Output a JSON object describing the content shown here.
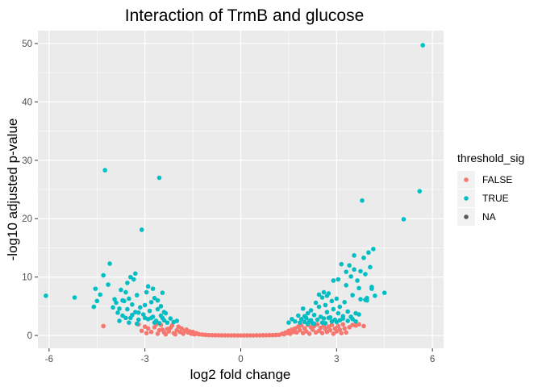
{
  "chart_data": {
    "type": "scatter",
    "title": "Interaction of TrmB and glucose",
    "xlabel": "log2 fold change",
    "ylabel": "-log10 adjusted p-value",
    "xlim": [
      -6.35,
      6.35
    ],
    "ylim": [
      -2.2,
      52.2
    ],
    "x_ticks": [
      -6,
      -3,
      0,
      3,
      6
    ],
    "x_tick_labels": [
      "-6",
      "-3",
      "0",
      "3",
      "6"
    ],
    "y_ticks": [
      0,
      10,
      20,
      30,
      40,
      50
    ],
    "y_tick_labels": [
      "0",
      "10",
      "20",
      "30",
      "40",
      "50"
    ],
    "grid": true,
    "panel_background": "#ebebeb",
    "legend": {
      "title": "threshold_sig",
      "placement": "right",
      "entries": [
        {
          "label": "FALSE",
          "color": "#F8766D"
        },
        {
          "label": "TRUE",
          "color": "#00BFC4"
        },
        {
          "label": "NA",
          "color": "#595959"
        }
      ]
    },
    "series": [
      {
        "name": "FALSE",
        "color": "#F8766D",
        "points": [
          [
            -4.3,
            1.6
          ],
          [
            3.85,
            1.6
          ],
          [
            -2.4,
            0.5
          ],
          [
            -2.3,
            1.1
          ],
          [
            -2.2,
            1.3
          ],
          [
            -2.1,
            0.4
          ],
          [
            -2.0,
            0.9
          ],
          [
            -1.95,
            1.5
          ],
          [
            -1.9,
            0.6
          ],
          [
            -1.85,
            1.2
          ],
          [
            -1.8,
            0.3
          ],
          [
            -1.75,
            0.8
          ],
          [
            -1.7,
            1.0
          ],
          [
            -1.65,
            0.5
          ],
          [
            -1.6,
            0.7
          ],
          [
            -1.55,
            0.3
          ],
          [
            -1.5,
            0.6
          ],
          [
            -1.45,
            0.2
          ],
          [
            -1.4,
            0.4
          ],
          [
            -1.35,
            0.3
          ],
          [
            -1.3,
            0.2
          ],
          [
            -1.2,
            0.15
          ],
          [
            -1.1,
            0.1
          ],
          [
            -2.8,
            0.6
          ],
          [
            -2.7,
            1.4
          ],
          [
            -2.6,
            0.3
          ],
          [
            -2.5,
            1.8
          ],
          [
            -2.45,
            1.0
          ],
          [
            -2.35,
            0.2
          ],
          [
            -2.25,
            0.7
          ],
          [
            -2.15,
            1.7
          ],
          [
            -2.05,
            0.2
          ],
          [
            -2.9,
            1.2
          ],
          [
            -3.0,
            1.5
          ],
          [
            -3.2,
            1.9
          ],
          [
            -2.95,
            0.4
          ],
          [
            -2.55,
            0.9
          ],
          [
            -3.1,
            0.8
          ],
          [
            -2.65,
            1.9
          ],
          [
            -1.0,
            0.05
          ],
          [
            -0.9,
            0.05
          ],
          [
            -0.8,
            0.03
          ],
          [
            -0.7,
            0.03
          ],
          [
            -0.6,
            0.02
          ],
          [
            -0.5,
            0.02
          ],
          [
            -0.4,
            0.01
          ],
          [
            -0.3,
            0.01
          ],
          [
            -0.2,
            0.01
          ],
          [
            -0.1,
            0.0
          ],
          [
            0.0,
            0.0
          ],
          [
            0.1,
            0.0
          ],
          [
            0.2,
            0.01
          ],
          [
            0.3,
            0.01
          ],
          [
            0.4,
            0.01
          ],
          [
            0.5,
            0.02
          ],
          [
            0.6,
            0.02
          ],
          [
            0.7,
            0.03
          ],
          [
            0.8,
            0.03
          ],
          [
            0.9,
            0.05
          ],
          [
            1.0,
            0.05
          ],
          [
            1.1,
            0.08
          ],
          [
            1.2,
            0.1
          ],
          [
            1.3,
            0.3
          ],
          [
            1.35,
            0.2
          ],
          [
            1.4,
            0.5
          ],
          [
            1.45,
            0.4
          ],
          [
            1.5,
            0.8
          ],
          [
            1.55,
            0.3
          ],
          [
            1.6,
            1.0
          ],
          [
            1.65,
            0.6
          ],
          [
            1.7,
            1.2
          ],
          [
            1.75,
            0.5
          ],
          [
            1.8,
            1.5
          ],
          [
            1.85,
            0.9
          ],
          [
            1.9,
            1.7
          ],
          [
            1.95,
            0.4
          ],
          [
            2.0,
            1.2
          ],
          [
            2.05,
            0.7
          ],
          [
            2.1,
            1.8
          ],
          [
            2.15,
            0.3
          ],
          [
            2.2,
            1.4
          ],
          [
            2.25,
            1.0
          ],
          [
            2.3,
            1.6
          ],
          [
            2.35,
            0.5
          ],
          [
            2.4,
            1.9
          ],
          [
            2.45,
            0.8
          ],
          [
            2.5,
            1.3
          ],
          [
            2.55,
            0.4
          ],
          [
            2.6,
            1.7
          ],
          [
            2.65,
            1.1
          ],
          [
            2.7,
            0.6
          ],
          [
            2.75,
            1.5
          ],
          [
            2.8,
            0.9
          ],
          [
            2.85,
            1.8
          ],
          [
            2.9,
            0.3
          ],
          [
            2.95,
            1.2
          ],
          [
            3.0,
            0.7
          ],
          [
            3.05,
            1.6
          ],
          [
            3.1,
            1.0
          ],
          [
            3.2,
            1.9
          ],
          [
            3.3,
            0.5
          ],
          [
            3.4,
            1.4
          ],
          [
            3.5,
            1.8
          ],
          [
            3.6,
            1.7
          ],
          [
            3.7,
            1.9
          ],
          [
            3.15,
            0.4
          ],
          [
            3.25,
            1.2
          ]
        ]
      },
      {
        "name": "TRUE",
        "color": "#00BFC4",
        "points": [
          [
            -6.1,
            6.8
          ],
          [
            -5.2,
            6.5
          ],
          [
            -4.6,
            4.9
          ],
          [
            -4.5,
            5.9
          ],
          [
            -4.55,
            8.0
          ],
          [
            -4.4,
            7.0
          ],
          [
            -4.3,
            10.3
          ],
          [
            -4.25,
            28.3
          ],
          [
            -4.1,
            12.3
          ],
          [
            -4.15,
            8.7
          ],
          [
            -4.0,
            4.8
          ],
          [
            -3.9,
            5.6
          ],
          [
            -3.85,
            3.9
          ],
          [
            -3.8,
            4.6
          ],
          [
            -3.75,
            7.8
          ],
          [
            -3.7,
            3.4
          ],
          [
            -3.65,
            5.9
          ],
          [
            -3.6,
            7.4
          ],
          [
            -3.55,
            4.5
          ],
          [
            -3.5,
            6.3
          ],
          [
            -3.45,
            3.0
          ],
          [
            -3.4,
            5.3
          ],
          [
            -3.35,
            9.6
          ],
          [
            -3.3,
            4.0
          ],
          [
            -3.25,
            6.9
          ],
          [
            -3.2,
            2.7
          ],
          [
            -3.15,
            4.8
          ],
          [
            -3.1,
            18.1
          ],
          [
            -3.05,
            3.6
          ],
          [
            -3.0,
            5.2
          ],
          [
            -2.95,
            7.4
          ],
          [
            -2.9,
            2.8
          ],
          [
            -2.85,
            4.2
          ],
          [
            -2.8,
            5.7
          ],
          [
            -2.75,
            3.2
          ],
          [
            -2.7,
            6.4
          ],
          [
            -2.65,
            2.5
          ],
          [
            -2.6,
            4.5
          ],
          [
            -2.55,
            27.0
          ],
          [
            -2.5,
            3.4
          ],
          [
            -2.45,
            7.3
          ],
          [
            -2.4,
            2.6
          ],
          [
            -2.35,
            3.8
          ],
          [
            -2.3,
            2.2
          ],
          [
            -2.2,
            2.9
          ],
          [
            -2.1,
            2.3
          ],
          [
            -2.0,
            2.5
          ],
          [
            -3.3,
            10.6
          ],
          [
            -3.45,
            10.0
          ],
          [
            -3.55,
            9.0
          ],
          [
            -3.7,
            6.0
          ],
          [
            -3.95,
            6.2
          ],
          [
            -2.6,
            6.0
          ],
          [
            -2.75,
            8.0
          ],
          [
            -2.9,
            8.4
          ],
          [
            -3.0,
            3.0
          ],
          [
            -3.2,
            3.9
          ],
          [
            -3.4,
            3.5
          ],
          [
            -2.5,
            5.0
          ],
          [
            -2.45,
            3.0
          ],
          [
            -2.4,
            4.0
          ],
          [
            -2.55,
            2.1
          ],
          [
            -2.7,
            2.2
          ],
          [
            -2.8,
            3.0
          ],
          [
            -3.6,
            3.0
          ],
          [
            -3.8,
            2.5
          ],
          [
            -3.5,
            2.2
          ],
          [
            -3.25,
            2.0
          ],
          [
            1.5,
            2.2
          ],
          [
            1.6,
            2.8
          ],
          [
            1.7,
            2.4
          ],
          [
            1.8,
            3.4
          ],
          [
            1.85,
            2.2
          ],
          [
            1.9,
            2.8
          ],
          [
            1.95,
            4.6
          ],
          [
            2.0,
            2.3
          ],
          [
            2.05,
            3.0
          ],
          [
            2.1,
            3.8
          ],
          [
            2.15,
            2.5
          ],
          [
            2.2,
            4.3
          ],
          [
            2.25,
            2.1
          ],
          [
            2.3,
            3.5
          ],
          [
            2.35,
            5.6
          ],
          [
            2.4,
            2.7
          ],
          [
            2.45,
            4.9
          ],
          [
            2.5,
            3.2
          ],
          [
            2.55,
            6.5
          ],
          [
            2.6,
            2.9
          ],
          [
            2.65,
            5.2
          ],
          [
            2.7,
            4.0
          ],
          [
            2.75,
            7.2
          ],
          [
            2.8,
            3.1
          ],
          [
            2.85,
            5.9
          ],
          [
            2.9,
            4.5
          ],
          [
            2.95,
            2.7
          ],
          [
            3.0,
            6.3
          ],
          [
            3.05,
            3.8
          ],
          [
            3.1,
            4.9
          ],
          [
            3.15,
            12.2
          ],
          [
            3.2,
            3.3
          ],
          [
            3.25,
            5.7
          ],
          [
            3.3,
            8.6
          ],
          [
            3.35,
            4.1
          ],
          [
            3.4,
            12.0
          ],
          [
            3.45,
            10.1
          ],
          [
            3.5,
            6.9
          ],
          [
            3.55,
            13.7
          ],
          [
            3.6,
            3.8
          ],
          [
            3.65,
            9.4
          ],
          [
            3.7,
            8.1
          ],
          [
            3.75,
            6.2
          ],
          [
            3.8,
            23.1
          ],
          [
            3.85,
            13.3
          ],
          [
            3.9,
            6.1
          ],
          [
            3.95,
            6.4
          ],
          [
            4.0,
            14.2
          ],
          [
            4.05,
            11.7
          ],
          [
            4.1,
            8.3
          ],
          [
            4.15,
            14.8
          ],
          [
            4.2,
            6.8
          ],
          [
            4.5,
            7.3
          ],
          [
            5.1,
            19.9
          ],
          [
            5.6,
            24.7
          ],
          [
            5.7,
            49.7
          ],
          [
            2.6,
            7.4
          ],
          [
            2.7,
            6.8
          ],
          [
            2.55,
            2.2
          ],
          [
            2.65,
            2.1
          ],
          [
            2.75,
            3.0
          ],
          [
            2.85,
            2.4
          ],
          [
            3.0,
            2.3
          ],
          [
            3.1,
            2.6
          ],
          [
            3.2,
            2.9
          ],
          [
            3.35,
            2.5
          ],
          [
            3.45,
            3.2
          ],
          [
            3.5,
            2.8
          ],
          [
            3.6,
            2.4
          ],
          [
            3.7,
            3.6
          ],
          [
            2.9,
            9.4
          ],
          [
            3.05,
            9.6
          ],
          [
            3.3,
            10.9
          ],
          [
            3.55,
            11.3
          ],
          [
            3.75,
            11.0
          ],
          [
            3.9,
            10.5
          ],
          [
            4.1,
            8.0
          ],
          [
            3.95,
            6.0
          ],
          [
            2.45,
            7.0
          ],
          [
            2.3,
            2.0
          ],
          [
            2.2,
            2.6
          ],
          [
            2.1,
            2.0
          ],
          [
            2.0,
            3.3
          ]
        ]
      }
    ]
  }
}
